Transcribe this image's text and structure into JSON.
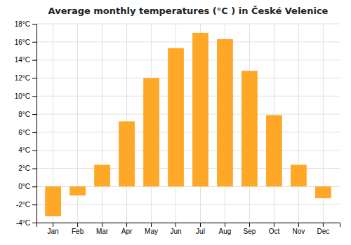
{
  "chart_data": {
    "type": "bar",
    "title": "Average monthly temperatures (°C ) in České Velenice",
    "categories": [
      "Jan",
      "Feb",
      "Mar",
      "Apr",
      "May",
      "Jun",
      "Jul",
      "Aug",
      "Sep",
      "Oct",
      "Nov",
      "Dec"
    ],
    "values": [
      -3.3,
      -1.0,
      2.4,
      7.2,
      12.0,
      15.3,
      17.0,
      16.3,
      12.8,
      7.9,
      2.4,
      -1.3
    ],
    "color": "#FFA726",
    "ylim": [
      -4,
      18
    ],
    "yticks": [
      {
        "value": -4,
        "label": "-4°C"
      },
      {
        "value": -2,
        "label": "-2°C"
      },
      {
        "value": 0,
        "label": "0°C"
      },
      {
        "value": 2,
        "label": "2°C"
      },
      {
        "value": 4,
        "label": "4°C"
      },
      {
        "value": 6,
        "label": "6°C"
      },
      {
        "value": 8,
        "label": "8°C"
      },
      {
        "value": 10,
        "label": "10°C"
      },
      {
        "value": 12,
        "label": "12°C"
      },
      {
        "value": 14,
        "label": "14°C"
      },
      {
        "value": 16,
        "label": "16°C"
      },
      {
        "value": 18,
        "label": "18°C"
      }
    ],
    "grid": true
  }
}
